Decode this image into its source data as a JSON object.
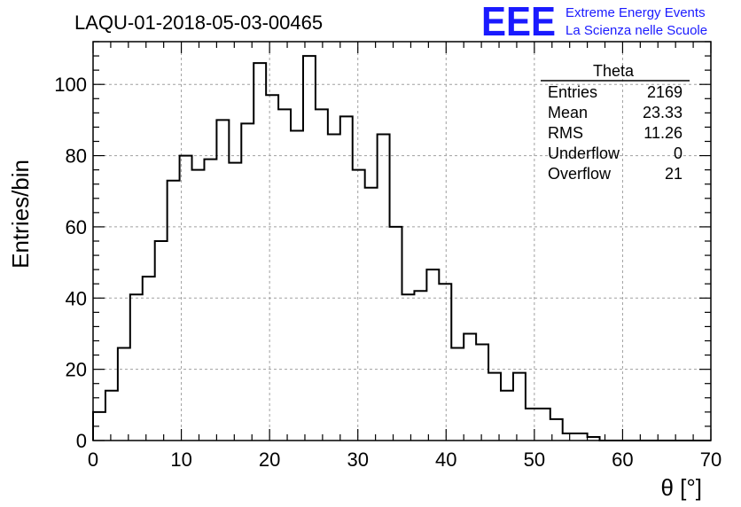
{
  "run_title": "LAQU-01-2018-05-03-00465",
  "logo": {
    "mark": "EEE",
    "line1": "Extreme Energy Events",
    "line2": "La Scienza nelle Scuole",
    "color": "#1a1aff"
  },
  "stats": {
    "name": "Theta",
    "rows": [
      {
        "label": "Entries",
        "value": "2169"
      },
      {
        "label": "Mean",
        "value": "23.33"
      },
      {
        "label": "RMS",
        "value": "11.26"
      },
      {
        "label": "Underflow",
        "value": "0"
      },
      {
        "label": "Overflow",
        "value": "21"
      }
    ]
  },
  "chart_data": {
    "type": "histogram",
    "title": "LAQU-01-2018-05-03-00465",
    "xlabel": "θ [°]",
    "ylabel": "Entries/bin",
    "xlim": [
      0,
      70
    ],
    "ylim": [
      0,
      112
    ],
    "grid": true,
    "bin_width": 1.4,
    "bin_start": 0,
    "values": [
      8,
      14,
      26,
      41,
      46,
      56,
      73,
      80,
      76,
      79,
      90,
      78,
      89,
      106,
      97,
      93,
      87,
      108,
      93,
      86,
      91,
      76,
      71,
      86,
      60,
      41,
      42,
      48,
      44,
      26,
      30,
      27,
      19,
      14,
      19,
      9,
      9,
      6,
      2,
      2,
      1,
      0,
      0,
      0,
      0,
      0,
      0,
      0,
      0,
      0
    ],
    "x_ticks": [
      0,
      10,
      20,
      30,
      40,
      50,
      60,
      70
    ],
    "y_ticks": [
      0,
      20,
      40,
      60,
      80,
      100
    ],
    "line_color": "#000000",
    "grid_color": "#a0a0a0"
  }
}
